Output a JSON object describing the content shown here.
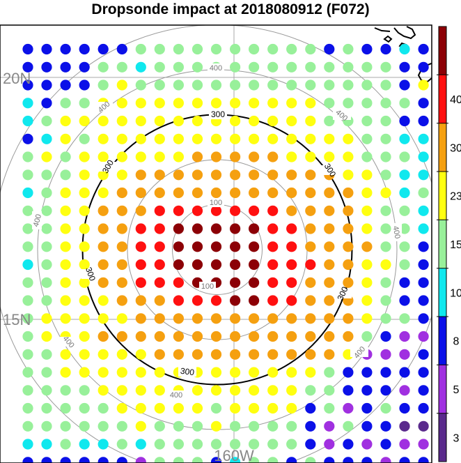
{
  "title": "Dropsonde impact at 2018080912 (F072)",
  "lat_labels": {
    "north": "20N",
    "south": "15N"
  },
  "lon_label": "160W",
  "range_rings": {
    "inner_label": "100",
    "main_label": "300",
    "outer_label": "400",
    "main_ring_km": 300,
    "other_rings_km": [
      100,
      200,
      400,
      500
    ]
  },
  "colorbar": {
    "tick_labels": [
      "3",
      "5",
      "8",
      "10",
      "15",
      "23",
      "30",
      "40"
    ],
    "bin_colors": [
      "#5a2a8c",
      "#a030e0",
      "#0b10e8",
      "#10e8ee",
      "#98f09a",
      "#ffff10",
      "#f5a010",
      "#ff1010",
      "#8c0006"
    ]
  },
  "map": {
    "grid_lines": {
      "latitudes": [
        "20N",
        "15N"
      ],
      "longitudes": [
        "160W"
      ]
    },
    "coastline": "Hawaiian Islands (upper right)"
  },
  "chart_data": {
    "type": "heatmap",
    "title": "Dropsonde impact at 2018080912 (F072)",
    "colorbar_levels": [
      3,
      5,
      8,
      10,
      15,
      23,
      30,
      40
    ],
    "grid": [
      "2222224444444444242232",
      "2222443444444444444422",
      "2222454444444444444425",
      "3244555555555555444442",
      "3455555555555555444422",
      "2354555555555555554433",
      "4545555556666655554443",
      "4445556666666666655433",
      "3455566666666666665534",
      "4455666777777766665443",
      "4455667788888776665443",
      "4455667788888776666442",
      "3455667788888777665542",
      "4455667778888776665422",
      "4455566677788776665422",
      "4555556666666666665442",
      "4555666666666666664211",
      "4455555666666666651112",
      "4455555555555555422222",
      "4444555555555554422212",
      "4444455555455552412422",
      "4444445444544442142200",
      "3343343444444442121211",
      "2222221444234424222122"
    ]
  }
}
